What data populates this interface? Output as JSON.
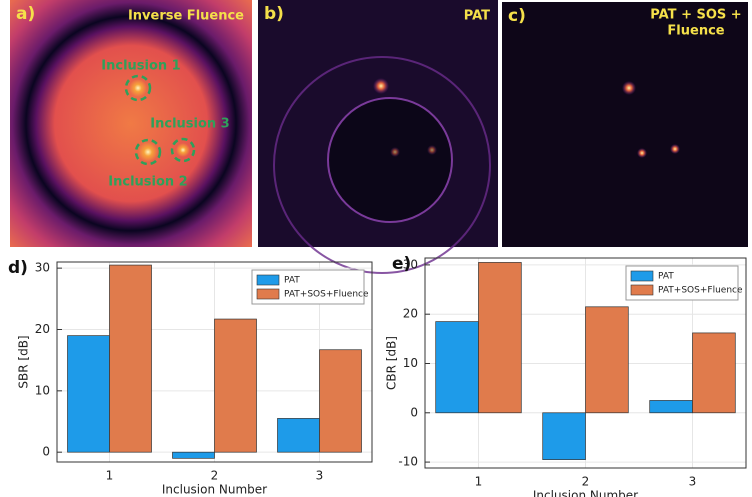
{
  "panels": [
    {
      "label": "a)",
      "title_lines": [
        "Inverse Fluence"
      ],
      "annotations": [
        "Inclusion 1",
        "Inclusion 3",
        "Inclusion 2"
      ]
    },
    {
      "label": "b)",
      "title_lines": [
        "PAT"
      ]
    },
    {
      "label": "c)",
      "title_lines": [
        "PAT + SOS +",
        "Fluence"
      ]
    }
  ],
  "chart_data": [
    {
      "type": "bar",
      "label": "d)",
      "ylabel": "SBR [dB]",
      "xlabel": "Inclusion Number",
      "categories": [
        "1",
        "2",
        "3"
      ],
      "series": [
        {
          "name": "PAT",
          "color": "#1e9be9",
          "values": [
            19,
            -1,
            5.5
          ]
        },
        {
          "name": "PAT+SOS+Fluence",
          "color": "#e07b4c",
          "values": [
            30.5,
            21.7,
            16.7
          ]
        }
      ],
      "ylim": [
        -1.6,
        31
      ],
      "yticks": [
        0,
        10,
        20,
        30
      ],
      "grid": true,
      "legend": "top-right"
    },
    {
      "type": "bar",
      "label": "e)",
      "ylabel": "CBR [dB]",
      "xlabel": "Inclusion Number",
      "categories": [
        "1",
        "2",
        "3"
      ],
      "series": [
        {
          "name": "PAT",
          "color": "#1e9be9",
          "values": [
            18.5,
            -9.5,
            2.5
          ]
        },
        {
          "name": "PAT+SOS+Fluence",
          "color": "#e07b4c",
          "values": [
            30.5,
            21.5,
            16.2
          ]
        }
      ],
      "ylim": [
        -11.2,
        31.4
      ],
      "yticks": [
        -10,
        0,
        10,
        20,
        30
      ],
      "grid": true,
      "legend": "top-right"
    }
  ]
}
